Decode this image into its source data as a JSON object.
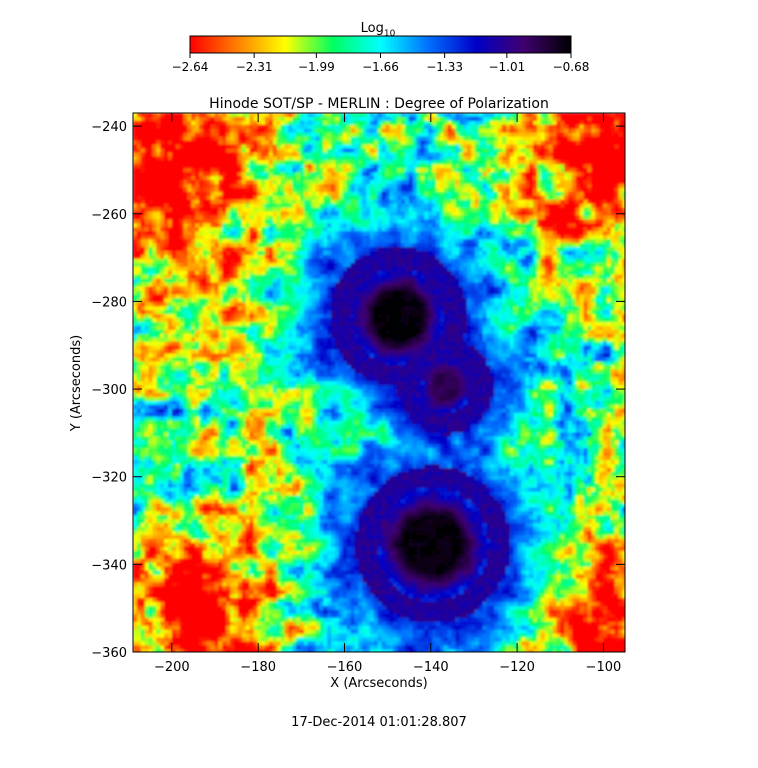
{
  "chart_data": {
    "type": "heatmap",
    "title": "Hinode SOT/SP - MERLIN : Degree of Polarization",
    "xlabel": "X (Arcseconds)",
    "ylabel": "Y (Arcseconds)",
    "xlim": [
      -209,
      -95
    ],
    "ylim": [
      -360,
      -237
    ],
    "x_ticks": [
      {
        "value": -200,
        "label": "−200"
      },
      {
        "value": -180,
        "label": "−180"
      },
      {
        "value": -160,
        "label": "−160"
      },
      {
        "value": -140,
        "label": "−140"
      },
      {
        "value": -120,
        "label": "−120"
      },
      {
        "value": -100,
        "label": "−100"
      }
    ],
    "y_ticks": [
      {
        "value": -240,
        "label": "−240"
      },
      {
        "value": -260,
        "label": "−260"
      },
      {
        "value": -280,
        "label": "−280"
      },
      {
        "value": -300,
        "label": "−300"
      },
      {
        "value": -320,
        "label": "−320"
      },
      {
        "value": -340,
        "label": "−340"
      },
      {
        "value": -360,
        "label": "−360"
      }
    ],
    "colorbar": {
      "title_main": "Log",
      "title_sub": "10",
      "min": -2.64,
      "max": -0.68,
      "ticks": [
        {
          "value": -2.64,
          "label": "−2.64"
        },
        {
          "value": -2.31,
          "label": "−2.31"
        },
        {
          "value": -1.99,
          "label": "−1.99"
        },
        {
          "value": -1.66,
          "label": "−1.66"
        },
        {
          "value": -1.33,
          "label": "−1.33"
        },
        {
          "value": -1.01,
          "label": "−1.01"
        },
        {
          "value": -0.68,
          "label": "−0.68"
        }
      ],
      "colors": [
        "#ff0000",
        "#ff8000",
        "#ffff00",
        "#00ff60",
        "#00ffff",
        "#0070ff",
        "#0000c8",
        "#400070",
        "#000000"
      ]
    },
    "sunspots": [
      {
        "x": -148,
        "y": -283,
        "r": 11,
        "value": -0.7
      },
      {
        "x": -140,
        "y": -335,
        "r": 13,
        "value": -0.7
      },
      {
        "x": -137,
        "y": -299,
        "r": 6,
        "value": -0.85
      }
    ],
    "timestamp": "17-Dec-2014 01:01:28.807",
    "grid": false
  }
}
